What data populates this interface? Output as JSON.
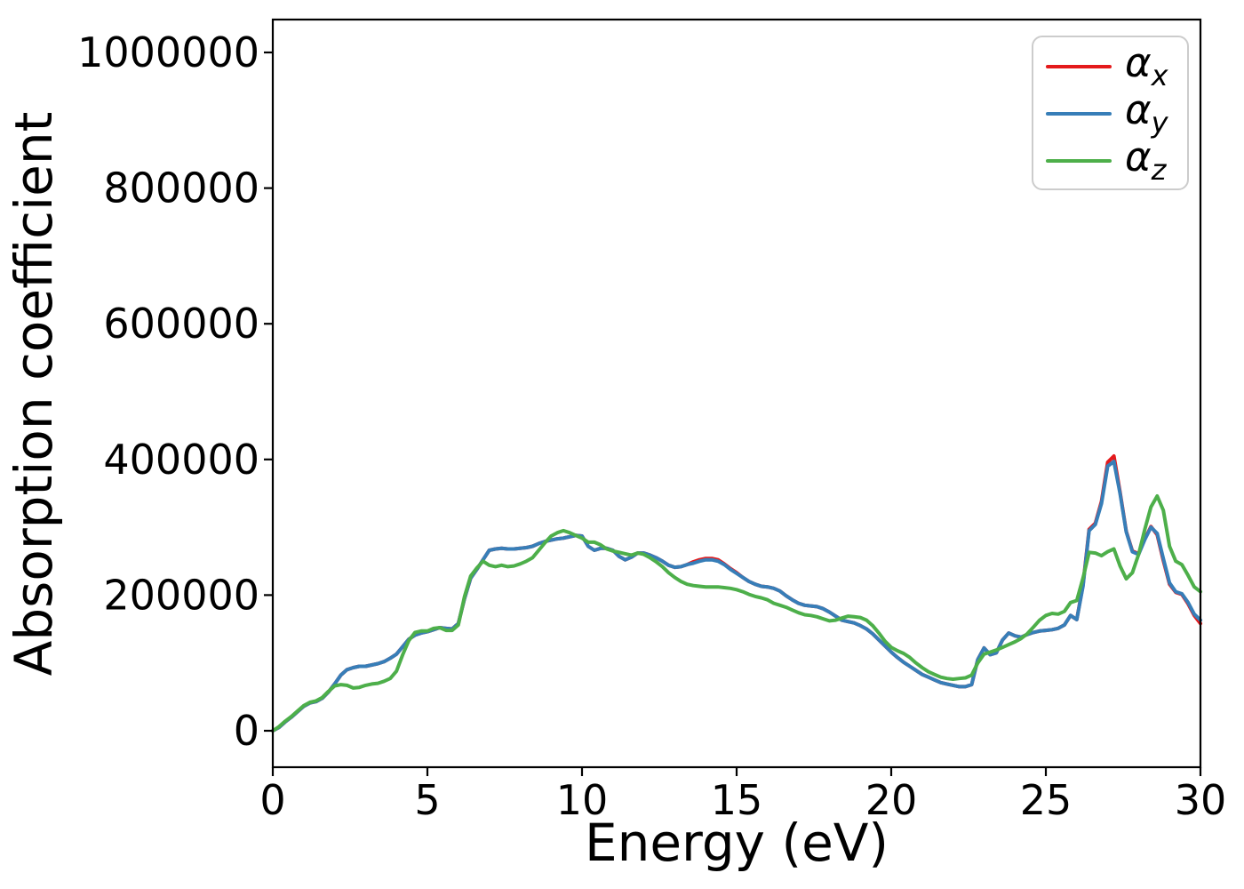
{
  "axis": {
    "xlabel": "Energy (eV)",
    "ylabel": "Absorption coefficient"
  },
  "chart_data": {
    "type": "line",
    "title": "",
    "xlabel": "Energy (eV)",
    "ylabel": "Absorption coefficient",
    "xlim": [
      0,
      30
    ],
    "ylim": [
      0,
      1000000
    ],
    "grid": false,
    "legend_position": "upper right",
    "x_ticks": [
      0,
      5,
      10,
      15,
      20,
      25,
      30
    ],
    "x_tick_labels": [
      "0",
      "5",
      "10",
      "15",
      "20",
      "25",
      "30"
    ],
    "y_ticks": [
      0,
      200000,
      400000,
      600000,
      800000,
      1000000
    ],
    "y_tick_labels": [
      "0",
      "200000",
      "400000",
      "600000",
      "800000",
      "1000000"
    ],
    "x": [
      0,
      0.2,
      0.4,
      0.6,
      0.8,
      1,
      1.2,
      1.4,
      1.6,
      1.8,
      2,
      2.2,
      2.4,
      2.6,
      2.8,
      3,
      3.2,
      3.4,
      3.6,
      3.8,
      4,
      4.2,
      4.4,
      4.6,
      4.8,
      5,
      5.2,
      5.4,
      5.6,
      5.8,
      6,
      6.2,
      6.4,
      6.6,
      6.8,
      7,
      7.2,
      7.4,
      7.6,
      7.8,
      8,
      8.2,
      8.4,
      8.6,
      8.8,
      9,
      9.2,
      9.4,
      9.6,
      9.8,
      10,
      10.2,
      10.4,
      10.6,
      10.8,
      11,
      11.2,
      11.4,
      11.6,
      11.8,
      12,
      12.2,
      12.4,
      12.6,
      12.8,
      13,
      13.2,
      13.4,
      13.6,
      13.8,
      14,
      14.2,
      14.4,
      14.6,
      14.8,
      15,
      15.2,
      15.4,
      15.6,
      15.8,
      16,
      16.2,
      16.4,
      16.6,
      16.8,
      17,
      17.2,
      17.4,
      17.6,
      17.8,
      18,
      18.2,
      18.4,
      18.6,
      18.8,
      19,
      19.2,
      19.4,
      19.6,
      19.8,
      20,
      20.2,
      20.4,
      20.6,
      20.8,
      21,
      21.2,
      21.4,
      21.6,
      21.8,
      22,
      22.2,
      22.4,
      22.6,
      22.8,
      23,
      23.2,
      23.4,
      23.6,
      23.8,
      24,
      24.2,
      24.4,
      24.6,
      24.8,
      25,
      25.2,
      25.4,
      25.6,
      25.8,
      26,
      26.2,
      26.4,
      26.6,
      26.8,
      27,
      27.2,
      27.4,
      27.6,
      27.8,
      28,
      28.2,
      28.4,
      28.6,
      28.8,
      29,
      29.2,
      29.4,
      29.6,
      29.8,
      30
    ],
    "series": [
      {
        "id": "alpha_x",
        "label_base": "α",
        "label_sub": "x",
        "color": "#e41a1c",
        "values": [
          0,
          5000,
          13000,
          20000,
          28000,
          36000,
          41000,
          43000,
          48000,
          57000,
          69000,
          82000,
          90000,
          93000,
          95000,
          95000,
          97000,
          99000,
          102000,
          107000,
          113000,
          124000,
          135000,
          141000,
          144000,
          146000,
          149000,
          152000,
          151000,
          150000,
          158000,
          195000,
          225000,
          238000,
          252000,
          266000,
          268000,
          269000,
          268000,
          268000,
          269000,
          270000,
          272000,
          276000,
          279000,
          281000,
          283000,
          284000,
          286000,
          288000,
          287000,
          272000,
          266000,
          269000,
          269000,
          266000,
          257000,
          252000,
          256000,
          262000,
          262000,
          259000,
          255000,
          250000,
          244000,
          241000,
          242000,
          245000,
          249000,
          252000,
          254000,
          254000,
          252000,
          246000,
          239000,
          233000,
          226000,
          220000,
          216000,
          213000,
          212000,
          210000,
          206000,
          199000,
          193000,
          188000,
          185000,
          184000,
          183000,
          180000,
          175000,
          169000,
          163000,
          161000,
          159000,
          155000,
          150000,
          143000,
          134000,
          125000,
          116000,
          108000,
          101000,
          95000,
          89000,
          83000,
          79000,
          75000,
          71000,
          69000,
          67000,
          65000,
          65000,
          68000,
          105000,
          122000,
          112000,
          115000,
          134000,
          144000,
          140000,
          138000,
          142000,
          145000,
          147000,
          148000,
          149000,
          151000,
          156000,
          170000,
          164000,
          215000,
          297000,
          306000,
          338000,
          396000,
          405000,
          352000,
          294000,
          265000,
          261000,
          283000,
          301000,
          289000,
          251000,
          216000,
          204000,
          201000,
          187000,
          170000,
          158000
        ]
      },
      {
        "id": "alpha_y",
        "label_base": "α",
        "label_sub": "y",
        "color": "#377eb8",
        "values": [
          0,
          5000,
          13000,
          20000,
          28000,
          36000,
          41000,
          43000,
          48000,
          57000,
          69000,
          82000,
          90000,
          93000,
          95000,
          95000,
          97000,
          99000,
          102000,
          107000,
          113000,
          124000,
          135000,
          141000,
          144000,
          146000,
          149000,
          152000,
          151000,
          150000,
          158000,
          195000,
          225000,
          238000,
          252000,
          266000,
          268000,
          269000,
          268000,
          268000,
          269000,
          270000,
          272000,
          276000,
          279000,
          281000,
          283000,
          284000,
          286000,
          288000,
          287000,
          272000,
          266000,
          269000,
          269000,
          266000,
          257000,
          252000,
          256000,
          262000,
          262000,
          259000,
          255000,
          250000,
          244000,
          241000,
          242000,
          245000,
          247000,
          250000,
          252000,
          252000,
          250000,
          245000,
          238000,
          232000,
          226000,
          220000,
          216000,
          213000,
          212000,
          210000,
          206000,
          199000,
          193000,
          188000,
          185000,
          184000,
          183000,
          180000,
          175000,
          169000,
          163000,
          161000,
          159000,
          155000,
          150000,
          143000,
          134000,
          125000,
          116000,
          108000,
          101000,
          95000,
          89000,
          83000,
          79000,
          75000,
          71000,
          69000,
          67000,
          65000,
          65000,
          68000,
          105000,
          122000,
          112000,
          115000,
          134000,
          144000,
          140000,
          138000,
          142000,
          145000,
          147000,
          148000,
          149000,
          151000,
          156000,
          170000,
          164000,
          213000,
          295000,
          304000,
          335000,
          390000,
          397000,
          350000,
          293000,
          264000,
          260000,
          282000,
          300000,
          291000,
          254000,
          218000,
          205000,
          202000,
          189000,
          172000,
          163000
        ]
      },
      {
        "id": "alpha_z",
        "label_base": "α",
        "label_sub": "z",
        "color": "#4daf4a",
        "values": [
          0,
          6000,
          14000,
          21000,
          29000,
          37000,
          42000,
          44000,
          49000,
          58000,
          66000,
          68000,
          67000,
          63000,
          64000,
          67000,
          69000,
          70000,
          73000,
          77000,
          88000,
          112000,
          133000,
          145000,
          147000,
          147000,
          151000,
          152000,
          148000,
          148000,
          156000,
          198000,
          228000,
          240000,
          250000,
          244000,
          242000,
          244000,
          242000,
          243000,
          246000,
          250000,
          255000,
          266000,
          277000,
          287000,
          292000,
          295000,
          292000,
          288000,
          284000,
          278000,
          278000,
          274000,
          268000,
          265000,
          263000,
          261000,
          259000,
          262000,
          260000,
          255000,
          249000,
          242000,
          233000,
          226000,
          220000,
          216000,
          214000,
          213000,
          212000,
          212000,
          212000,
          211000,
          210000,
          208000,
          205000,
          201000,
          198000,
          196000,
          193000,
          188000,
          185000,
          182000,
          178000,
          174000,
          171000,
          170000,
          168000,
          165000,
          162000,
          163000,
          166000,
          169000,
          168000,
          167000,
          163000,
          155000,
          144000,
          132000,
          123000,
          118000,
          114000,
          108000,
          100000,
          93000,
          87000,
          83000,
          79000,
          77000,
          76000,
          77000,
          78000,
          82000,
          100000,
          113000,
          116000,
          119000,
          123000,
          127000,
          131000,
          136000,
          143000,
          153000,
          163000,
          170000,
          173000,
          172000,
          176000,
          189000,
          192000,
          225000,
          263000,
          262000,
          258000,
          264000,
          268000,
          243000,
          224000,
          233000,
          260000,
          297000,
          330000,
          346000,
          325000,
          272000,
          250000,
          245000,
          229000,
          212000,
          205000
        ]
      }
    ]
  }
}
